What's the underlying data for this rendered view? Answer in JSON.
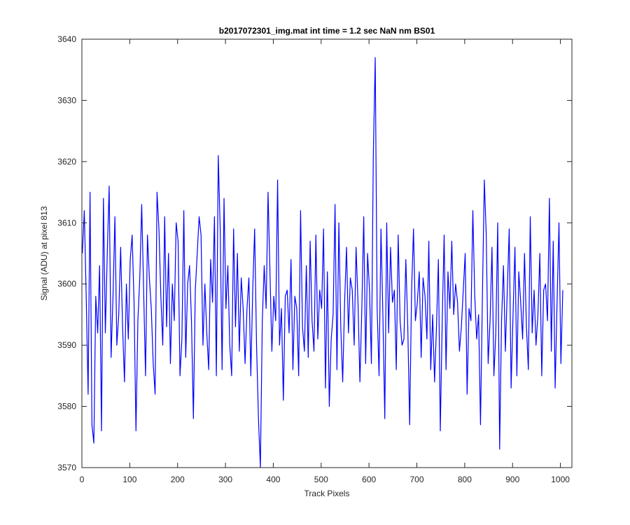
{
  "chart_data": {
    "type": "line",
    "title": "b2017072301_img.mat int time = 1.2 sec  NaN nm BS01",
    "xlabel": "Track Pixels",
    "ylabel": "Signal (ADU) at pixel 813",
    "xlim": [
      0,
      1024
    ],
    "ylim": [
      3570,
      3640
    ],
    "xticks": [
      0,
      100,
      200,
      300,
      400,
      500,
      600,
      700,
      800,
      900,
      1000
    ],
    "yticks": [
      3570,
      3580,
      3590,
      3600,
      3610,
      3620,
      3630,
      3640
    ],
    "grid": false,
    "series": [
      {
        "color": "#0000ff",
        "x_start": 1,
        "x_step": 4,
        "values": [
          3605,
          3612,
          3598,
          3582,
          3615,
          3577,
          3574,
          3598,
          3592,
          3603,
          3576,
          3614,
          3592,
          3605,
          3616,
          3588,
          3598,
          3611,
          3590,
          3595,
          3606,
          3593,
          3584,
          3600,
          3591,
          3604,
          3608,
          3597,
          3576,
          3594,
          3601,
          3613,
          3599,
          3585,
          3608,
          3601,
          3596,
          3587,
          3582,
          3615,
          3609,
          3598,
          3590,
          3611,
          3593,
          3605,
          3587,
          3600,
          3594,
          3610,
          3607,
          3585,
          3591,
          3612,
          3588,
          3600,
          3603,
          3594,
          3578,
          3599,
          3605,
          3611,
          3608,
          3590,
          3600,
          3592,
          3586,
          3604,
          3597,
          3611,
          3585,
          3621,
          3609,
          3586,
          3614,
          3596,
          3603,
          3590,
          3585,
          3609,
          3593,
          3605,
          3589,
          3601,
          3596,
          3587,
          3596,
          3601,
          3585,
          3599,
          3609,
          3590,
          3578,
          3570,
          3594,
          3603,
          3596,
          3615,
          3602,
          3589,
          3598,
          3594,
          3617,
          3590,
          3596,
          3581,
          3598,
          3599,
          3592,
          3604,
          3586,
          3598,
          3596,
          3585,
          3612,
          3593,
          3589,
          3603,
          3588,
          3607,
          3594,
          3589,
          3608,
          3591,
          3599,
          3596,
          3609,
          3583,
          3602,
          3580,
          3591,
          3595,
          3613,
          3586,
          3610,
          3593,
          3584,
          3597,
          3606,
          3592,
          3601,
          3599,
          3590,
          3606,
          3597,
          3584,
          3596,
          3611,
          3587,
          3605,
          3599,
          3587,
          3621,
          3637,
          3596,
          3585,
          3609,
          3595,
          3578,
          3610,
          3592,
          3606,
          3597,
          3599,
          3586,
          3608,
          3594,
          3590,
          3591,
          3604,
          3593,
          3577,
          3599,
          3609,
          3594,
          3597,
          3602,
          3588,
          3601,
          3598,
          3591,
          3607,
          3586,
          3595,
          3584,
          3593,
          3604,
          3576,
          3594,
          3608,
          3586,
          3602,
          3596,
          3607,
          3595,
          3600,
          3597,
          3589,
          3593,
          3599,
          3605,
          3582,
          3596,
          3594,
          3612,
          3598,
          3591,
          3595,
          3577,
          3598,
          3617,
          3608,
          3587,
          3594,
          3606,
          3585,
          3592,
          3610,
          3573,
          3594,
          3603,
          3589,
          3599,
          3609,
          3583,
          3595,
          3606,
          3585,
          3602,
          3597,
          3591,
          3605,
          3593,
          3586,
          3611,
          3592,
          3599,
          3590,
          3595,
          3605,
          3585,
          3599,
          3600,
          3594,
          3614,
          3589,
          3607,
          3583,
          3597,
          3610,
          3587,
          3599
        ]
      }
    ]
  }
}
